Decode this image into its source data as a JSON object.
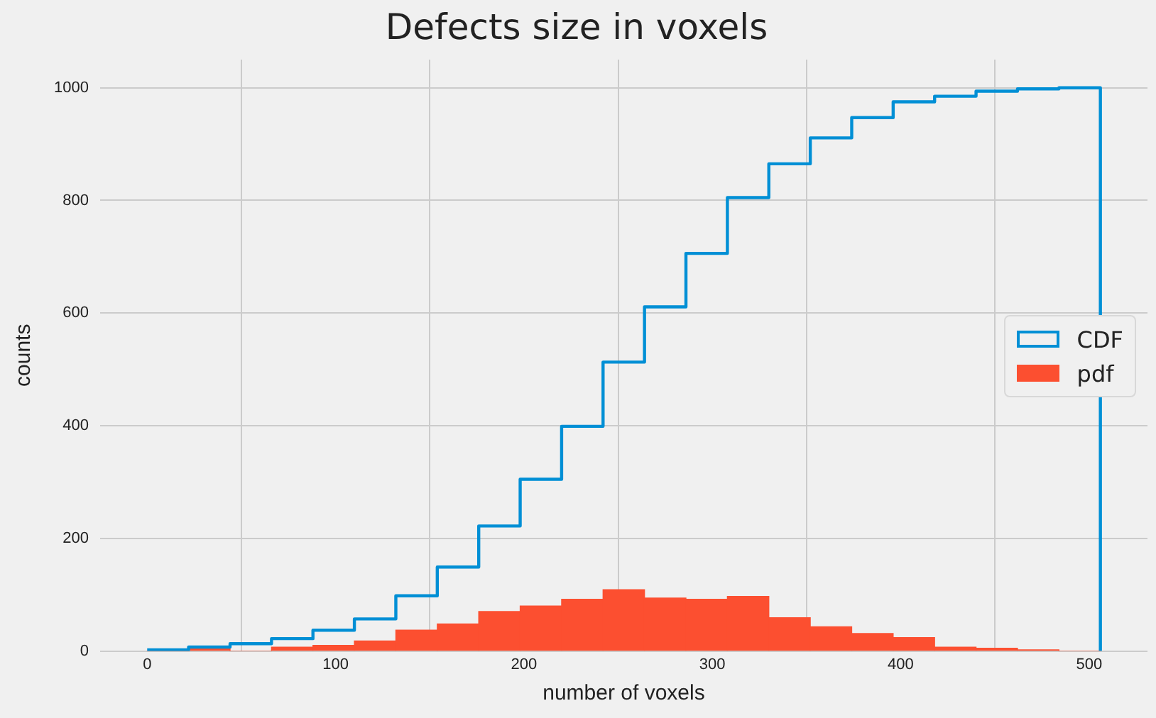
{
  "chart_data": {
    "type": "histogram",
    "title": "Defects size in voxels",
    "xlabel": "number of voxels",
    "ylabel": "counts",
    "bins": [
      0,
      22,
      44,
      66,
      88,
      110,
      132,
      154,
      176,
      198,
      220,
      242,
      264,
      286,
      308,
      330,
      352,
      374,
      396,
      418,
      440,
      462,
      484,
      506
    ],
    "series": [
      {
        "name": "CDF",
        "type": "step",
        "color": "#008fd5",
        "x": [
          0,
          22,
          44,
          66,
          88,
          110,
          132,
          154,
          176,
          198,
          220,
          242,
          264,
          286,
          308,
          330,
          352,
          374,
          396,
          418,
          440,
          462,
          484,
          506
        ],
        "values": [
          2,
          7,
          13,
          22,
          37,
          57,
          98,
          149,
          222,
          305,
          399,
          513,
          611,
          706,
          805,
          865,
          911,
          947,
          975,
          985,
          994,
          998,
          1000,
          0
        ]
      },
      {
        "name": "pdf",
        "type": "histogram",
        "color": "#fc4f30",
        "values": [
          0,
          5,
          0,
          7,
          10,
          18,
          37,
          48,
          70,
          80,
          92,
          109,
          94,
          92,
          97,
          59,
          43,
          31,
          24,
          7,
          5,
          2,
          0
        ]
      }
    ],
    "xlim": [
      -25,
      531
    ],
    "xticks": [
      0,
      100,
      200,
      300,
      400,
      500
    ],
    "ylim": [
      0,
      1050
    ],
    "yticks": [
      0,
      200,
      400,
      600,
      800,
      1000
    ],
    "grid": true,
    "legend": "right"
  }
}
